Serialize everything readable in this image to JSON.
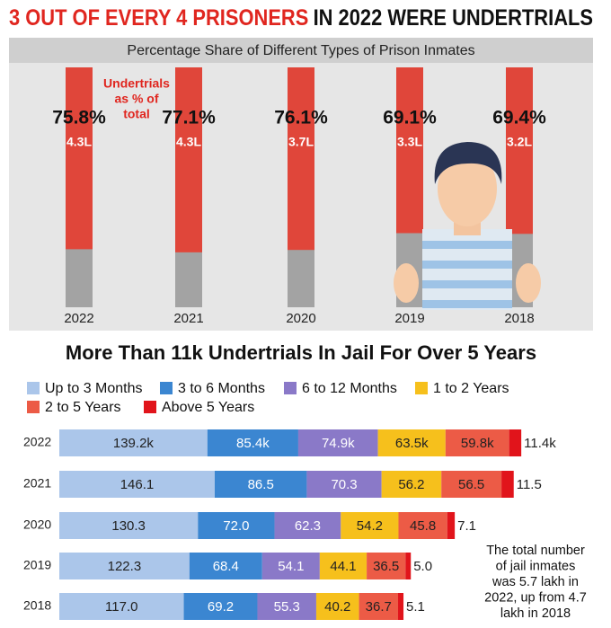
{
  "chart_data": [
    {
      "type": "bar",
      "title": [
        "3 OUT OF EVERY 4 PRISONERS",
        "IN 2022 WERE UNDERTRIALS"
      ],
      "subtitle": "Percentage Share of Different Types of Prison Inmates",
      "annotation": [
        "Undertrials",
        "as % of",
        "total"
      ],
      "categories": [
        "2022",
        "2021",
        "2020",
        "2019",
        "2018"
      ],
      "values": [
        75.8,
        77.1,
        76.1,
        69.1,
        69.4
      ],
      "value_labels": [
        "75.8%",
        "77.1%",
        "76.1%",
        "69.1%",
        "69.4%"
      ],
      "color": "#e0463a",
      "rest_color": "#a3a3a3",
      "undertrials_lakh": {
        "values": [
          4.3,
          4.3,
          3.7,
          3.3,
          3.2
        ],
        "value_labels": [
          "4.3L",
          "4.3L",
          "3.7L",
          "3.3L",
          "3.2L"
        ]
      },
      "ylim": [
        0,
        100
      ]
    },
    {
      "type": "stacked-bar",
      "title": "More Than 11k Undertrials In Jail For Over 5 Years",
      "categories": [
        "2022",
        "2021",
        "2020",
        "2019",
        "2018"
      ],
      "series": [
        {
          "name": "Up to 3 Months",
          "color": "#abc6ea",
          "values": [
            139.2,
            146.1,
            130.3,
            122.3,
            117.0
          ],
          "value_labels": [
            "139.2k",
            "146.1",
            "130.3",
            "122.3",
            "117.0"
          ]
        },
        {
          "name": "3 to 6 Months",
          "color": "#3b86d1",
          "values": [
            85.4,
            86.5,
            72.0,
            68.4,
            69.2
          ],
          "value_labels": [
            "85.4k",
            "86.5",
            "72.0",
            "68.4",
            "69.2"
          ]
        },
        {
          "name": "6 to 12 Months",
          "color": "#8a79c8",
          "values": [
            74.9,
            70.3,
            62.3,
            54.1,
            55.3
          ],
          "value_labels": [
            "74.9k",
            "70.3",
            "62.3",
            "54.1",
            "55.3"
          ]
        },
        {
          "name": "1 to 2 Years",
          "color": "#f6c01c",
          "values": [
            63.5,
            56.2,
            54.2,
            44.1,
            40.2
          ],
          "value_labels": [
            "63.5k",
            "56.2",
            "54.2",
            "44.1",
            "40.2"
          ]
        },
        {
          "name": "2 to 5 Years",
          "color": "#ec5b46",
          "values": [
            59.8,
            56.5,
            45.8,
            36.5,
            36.7
          ],
          "value_labels": [
            "59.8k",
            "56.5",
            "45.8",
            "36.5",
            "36.7"
          ]
        },
        {
          "name": "Above 5 Years",
          "color": "#e1141b",
          "values": [
            11.4,
            11.5,
            7.1,
            5.0,
            5.1
          ],
          "value_labels": [
            "11.4k",
            "11.5",
            "7.1",
            "5.0",
            "5.1"
          ]
        }
      ],
      "xlim": [
        0,
        440
      ],
      "annotation": [
        "The total number",
        "of jail inmates",
        "was 5.7 lakh in",
        "2022, up from 4.7",
        "lakh in 2018"
      ]
    }
  ]
}
